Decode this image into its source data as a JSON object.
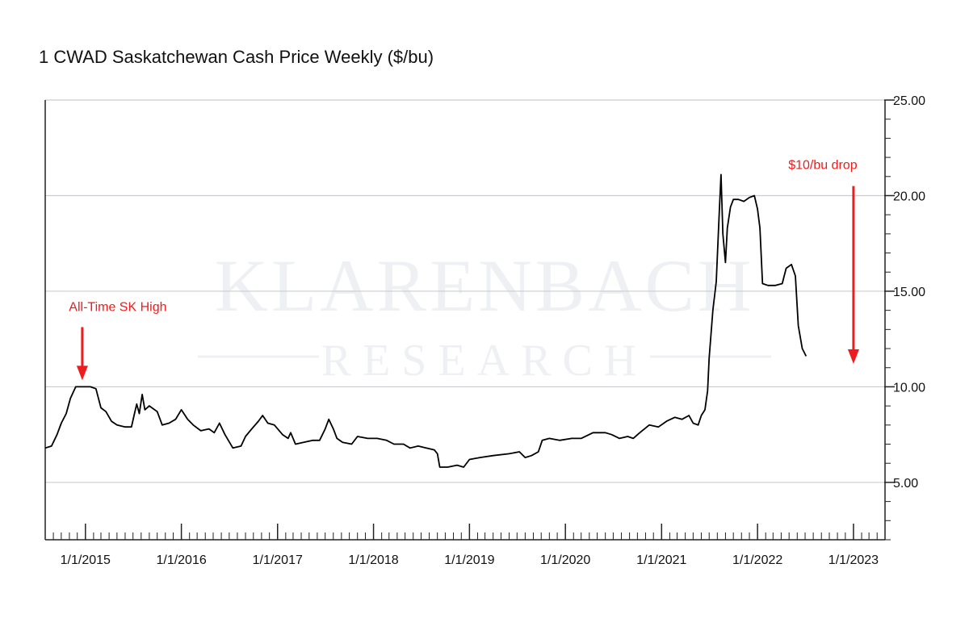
{
  "chart_data": {
    "type": "line",
    "title": "1 CWAD Saskatchewan Cash Price Weekly ($/bu)",
    "xlabel": "",
    "ylabel": "",
    "xlim": [
      "2014-08-01",
      "2023-05-01"
    ],
    "ylim": [
      2.0,
      25.0
    ],
    "y_ticks": [
      "5.00",
      "10.00",
      "15.00",
      "20.00",
      "25.00"
    ],
    "x_ticks": [
      "1/1/2015",
      "1/1/2016",
      "1/1/2017",
      "1/1/2018",
      "1/1/2019",
      "1/1/2020",
      "1/1/2021",
      "1/1/2022",
      "1/1/2023"
    ],
    "grid": true,
    "y_axis_position": "right",
    "series_color": "#000000",
    "series": [
      {
        "values": [
          [
            "2014-08-01",
            6.8
          ],
          [
            "2014-08-25",
            6.9
          ],
          [
            "2014-09-15",
            7.5
          ],
          [
            "2014-10-01",
            8.1
          ],
          [
            "2014-10-20",
            8.6
          ],
          [
            "2014-11-05",
            9.4
          ],
          [
            "2014-11-25",
            10.0
          ],
          [
            "2014-12-20",
            10.0
          ],
          [
            "2015-01-20",
            10.0
          ],
          [
            "2015-02-10",
            9.9
          ],
          [
            "2015-03-01",
            8.9
          ],
          [
            "2015-03-20",
            8.7
          ],
          [
            "2015-04-10",
            8.2
          ],
          [
            "2015-05-01",
            8.0
          ],
          [
            "2015-06-01",
            7.9
          ],
          [
            "2015-06-25",
            7.9
          ],
          [
            "2015-07-05",
            8.5
          ],
          [
            "2015-07-15",
            9.1
          ],
          [
            "2015-07-25",
            8.6
          ],
          [
            "2015-08-05",
            9.6
          ],
          [
            "2015-08-15",
            8.8
          ],
          [
            "2015-09-01",
            9.0
          ],
          [
            "2015-10-01",
            8.7
          ],
          [
            "2015-10-20",
            8.0
          ],
          [
            "2015-11-15",
            8.1
          ],
          [
            "2015-12-10",
            8.3
          ],
          [
            "2016-01-01",
            8.8
          ],
          [
            "2016-01-25",
            8.3
          ],
          [
            "2016-02-15",
            8.0
          ],
          [
            "2016-03-15",
            7.7
          ],
          [
            "2016-04-15",
            7.8
          ],
          [
            "2016-05-05",
            7.6
          ],
          [
            "2016-05-25",
            8.1
          ],
          [
            "2016-06-15",
            7.5
          ],
          [
            "2016-07-15",
            6.8
          ],
          [
            "2016-08-15",
            6.9
          ],
          [
            "2016-09-01",
            7.4
          ],
          [
            "2016-09-25",
            7.8
          ],
          [
            "2016-10-20",
            8.2
          ],
          [
            "2016-11-05",
            8.5
          ],
          [
            "2016-11-25",
            8.1
          ],
          [
            "2016-12-20",
            8.0
          ],
          [
            "2017-01-20",
            7.5
          ],
          [
            "2017-02-10",
            7.3
          ],
          [
            "2017-02-20",
            7.6
          ],
          [
            "2017-03-10",
            7.0
          ],
          [
            "2017-04-10",
            7.1
          ],
          [
            "2017-05-15",
            7.2
          ],
          [
            "2017-06-10",
            7.2
          ],
          [
            "2017-07-01",
            7.8
          ],
          [
            "2017-07-15",
            8.3
          ],
          [
            "2017-08-01",
            7.8
          ],
          [
            "2017-08-15",
            7.3
          ],
          [
            "2017-09-05",
            7.1
          ],
          [
            "2017-10-10",
            7.0
          ],
          [
            "2017-11-01",
            7.4
          ],
          [
            "2017-12-10",
            7.3
          ],
          [
            "2018-01-15",
            7.3
          ],
          [
            "2018-02-20",
            7.2
          ],
          [
            "2018-03-20",
            7.0
          ],
          [
            "2018-04-25",
            7.0
          ],
          [
            "2018-05-20",
            6.8
          ],
          [
            "2018-06-20",
            6.9
          ],
          [
            "2018-07-20",
            6.8
          ],
          [
            "2018-08-20",
            6.7
          ],
          [
            "2018-09-01",
            6.5
          ],
          [
            "2018-09-10",
            5.8
          ],
          [
            "2018-10-10",
            5.8
          ],
          [
            "2018-11-15",
            5.9
          ],
          [
            "2018-12-10",
            5.8
          ],
          [
            "2019-01-01",
            6.2
          ],
          [
            "2019-02-10",
            6.3
          ],
          [
            "2019-04-01",
            6.4
          ],
          [
            "2019-06-01",
            6.5
          ],
          [
            "2019-07-10",
            6.6
          ],
          [
            "2019-08-01",
            6.3
          ],
          [
            "2019-08-25",
            6.4
          ],
          [
            "2019-09-20",
            6.6
          ],
          [
            "2019-10-05",
            7.2
          ],
          [
            "2019-11-01",
            7.3
          ],
          [
            "2019-12-10",
            7.2
          ],
          [
            "2020-01-25",
            7.3
          ],
          [
            "2020-03-01",
            7.3
          ],
          [
            "2020-04-15",
            7.6
          ],
          [
            "2020-06-01",
            7.6
          ],
          [
            "2020-06-25",
            7.5
          ],
          [
            "2020-07-25",
            7.3
          ],
          [
            "2020-08-25",
            7.4
          ],
          [
            "2020-09-15",
            7.3
          ],
          [
            "2020-10-10",
            7.6
          ],
          [
            "2020-11-15",
            8.0
          ],
          [
            "2020-12-20",
            7.9
          ],
          [
            "2021-01-20",
            8.2
          ],
          [
            "2021-02-20",
            8.4
          ],
          [
            "2021-03-20",
            8.3
          ],
          [
            "2021-04-15",
            8.5
          ],
          [
            "2021-05-01",
            8.1
          ],
          [
            "2021-05-20",
            8.0
          ],
          [
            "2021-06-01",
            8.5
          ],
          [
            "2021-06-15",
            8.8
          ],
          [
            "2021-06-25",
            9.8
          ],
          [
            "2021-07-01",
            11.5
          ],
          [
            "2021-07-15",
            14.0
          ],
          [
            "2021-07-28",
            15.5
          ],
          [
            "2021-08-08",
            19.0
          ],
          [
            "2021-08-15",
            21.1
          ],
          [
            "2021-08-22",
            18.0
          ],
          [
            "2021-09-01",
            16.5
          ],
          [
            "2021-09-08",
            18.3
          ],
          [
            "2021-09-20",
            19.4
          ],
          [
            "2021-10-01",
            19.8
          ],
          [
            "2021-10-20",
            19.8
          ],
          [
            "2021-11-10",
            19.7
          ],
          [
            "2021-12-01",
            19.9
          ],
          [
            "2021-12-20",
            20.0
          ],
          [
            "2022-01-01",
            19.3
          ],
          [
            "2022-01-10",
            18.3
          ],
          [
            "2022-01-20",
            15.4
          ],
          [
            "2022-02-10",
            15.3
          ],
          [
            "2022-03-10",
            15.3
          ],
          [
            "2022-04-05",
            15.4
          ],
          [
            "2022-04-20",
            16.2
          ],
          [
            "2022-05-10",
            16.4
          ],
          [
            "2022-05-25",
            15.8
          ],
          [
            "2022-06-05",
            13.2
          ],
          [
            "2022-06-20",
            12.0
          ],
          [
            "2022-07-05",
            11.6
          ]
        ]
      }
    ],
    "annotations": [
      {
        "text": "All-Time SK High",
        "x": "2014-12-20",
        "y": 10.0,
        "color": "#ee1c1c"
      },
      {
        "text": "$10/bu drop",
        "x": "2023-01-01",
        "y_from": 20.5,
        "y_to": 11.2,
        "color": "#ee1c1c"
      }
    ]
  },
  "watermark": {
    "line1": "KLARENBACH",
    "line2": "RESEARCH"
  }
}
